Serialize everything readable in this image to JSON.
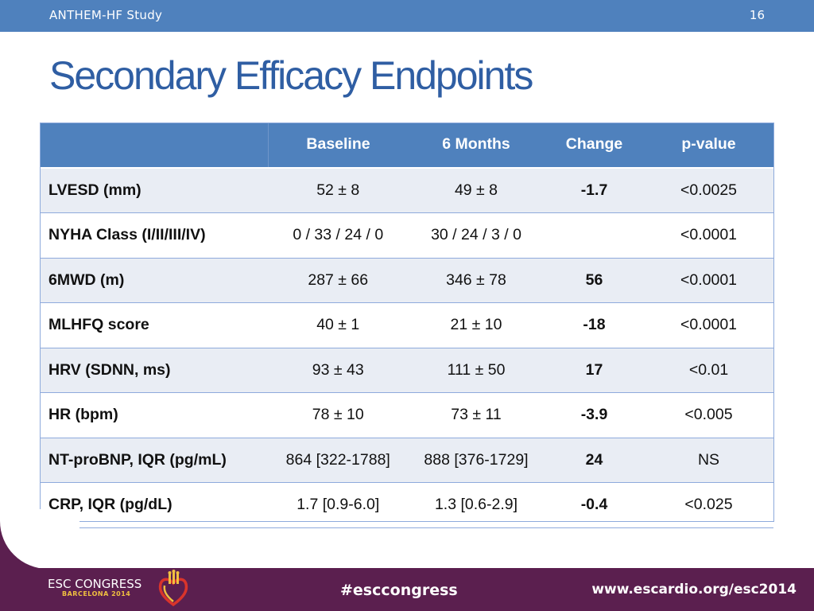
{
  "header": {
    "study": "ANTHEM-HF Study",
    "page": "16"
  },
  "title": "Secondary Efficacy Endpoints",
  "table": {
    "columns": [
      "",
      "Baseline",
      "6 Months",
      "Change",
      "p-value"
    ],
    "rows": [
      {
        "label": "LVESD (mm)",
        "baseline": "52 ± 8",
        "months6": "49 ± 8",
        "change": "-1.7",
        "p": "<0.0025"
      },
      {
        "label": "NYHA Class (I/II/III/IV)",
        "baseline": "0 / 33 / 24 / 0",
        "months6": "30 / 24 / 3 / 0",
        "change": "",
        "p": "<0.0001"
      },
      {
        "label": "6MWD (m)",
        "baseline": "287 ± 66",
        "months6": "346 ± 78",
        "change": "56",
        "p": "<0.0001"
      },
      {
        "label": "MLHFQ score",
        "baseline": "40 ± 1",
        "months6": "21 ± 10",
        "change": "-18",
        "p": "<0.0001"
      },
      {
        "label": "HRV (SDNN, ms)",
        "baseline": "93 ± 43",
        "months6": "111 ± 50",
        "change": "17",
        "p": "<0.01"
      },
      {
        "label": "HR (bpm)",
        "baseline": "78 ± 10",
        "months6": "73 ± 11",
        "change": "-3.9",
        "p": "<0.005"
      },
      {
        "label": "NT-proBNP, IQR (pg/mL)",
        "baseline": "864 [322-1788]",
        "months6": "888 [376-1729]",
        "change": "24",
        "p": "NS"
      },
      {
        "label": "CRP, IQR (pg/dL)",
        "baseline": "1.7 [0.9-6.0]",
        "months6": "1.3 [0.6-2.9]",
        "change": "-0.4",
        "p": "<0.025"
      }
    ]
  },
  "footer": {
    "logo_main": "ESC CONGRESS",
    "logo_sub": "BARCELONA 2014",
    "hashtag": "#esccongress",
    "website": "www.escardio.org/esc2014"
  },
  "colors": {
    "header_blue": "#4f81bd",
    "title_blue": "#2f5ea3",
    "row_stripe": "#e9edf4",
    "footer_purple": "#5b1f4f"
  }
}
